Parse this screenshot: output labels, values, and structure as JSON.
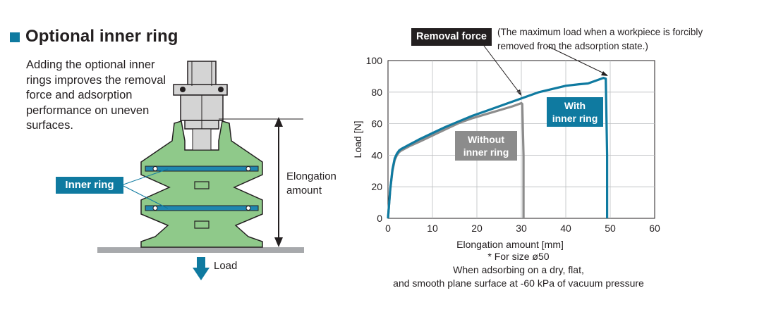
{
  "heading": "Optional inner ring",
  "description": "Adding the optional inner rings improves the removal force and adsorption performance on uneven surfaces.",
  "diagram": {
    "inner_ring_label": "Inner ring",
    "elongation_label": "Elongation amount",
    "load_label": "Load"
  },
  "callout": {
    "title": "Removal force",
    "note": "(The maximum load when a workpiece is forcibly removed from the adsorption state.)"
  },
  "footnote": {
    "line1": "* For size ø50",
    "line2": "When adsorbing on a dry, flat,",
    "line3": "and smooth plane surface at -60 kPa of vacuum pressure"
  },
  "colors": {
    "accent": "#0f7aa0",
    "gray_series": "#8c8c8c",
    "pad_green": "#8fc98a",
    "dark": "#231f20"
  },
  "chart_data": {
    "type": "line",
    "xlabel": "Elongation amount [mm]",
    "ylabel": "Load [N]",
    "xlim": [
      0,
      60
    ],
    "ylim": [
      0,
      100
    ],
    "xticks": [
      0,
      10,
      20,
      30,
      40,
      50,
      60
    ],
    "yticks": [
      0,
      20,
      40,
      60,
      80,
      100
    ],
    "grid": true,
    "series": [
      {
        "name": "Without inner ring",
        "color": "#8c8c8c",
        "x": [
          0,
          0.5,
          1,
          1.5,
          2,
          2.5,
          3,
          4,
          5,
          7,
          10,
          13,
          16,
          19,
          22,
          25,
          28,
          30,
          30.2,
          30.5,
          30.5
        ],
        "y": [
          0,
          18,
          30,
          37,
          40,
          42,
          43,
          44.5,
          46,
          48.5,
          52.5,
          56.5,
          60.5,
          63.5,
          66,
          68.5,
          71,
          73,
          72.5,
          40,
          0
        ]
      },
      {
        "name": "With inner ring",
        "color": "#0f7aa0",
        "x": [
          0,
          0.5,
          1,
          1.5,
          2,
          2.5,
          3,
          4,
          5,
          7,
          10,
          13,
          16,
          19,
          22,
          25,
          28,
          31,
          34,
          37,
          40,
          43,
          45,
          47,
          48.5,
          49,
          49.3,
          49.3
        ],
        "y": [
          0,
          18,
          31,
          38,
          41,
          43,
          44,
          45.5,
          47,
          50,
          54,
          58,
          61.5,
          65,
          68,
          71,
          74,
          77,
          80,
          82,
          84,
          85,
          85.5,
          87.5,
          89,
          88.5,
          40,
          0
        ]
      }
    ],
    "annotations": [
      {
        "text": "Without inner ring",
        "series": "Without inner ring"
      },
      {
        "text": "With inner ring",
        "series": "With inner ring"
      }
    ]
  }
}
